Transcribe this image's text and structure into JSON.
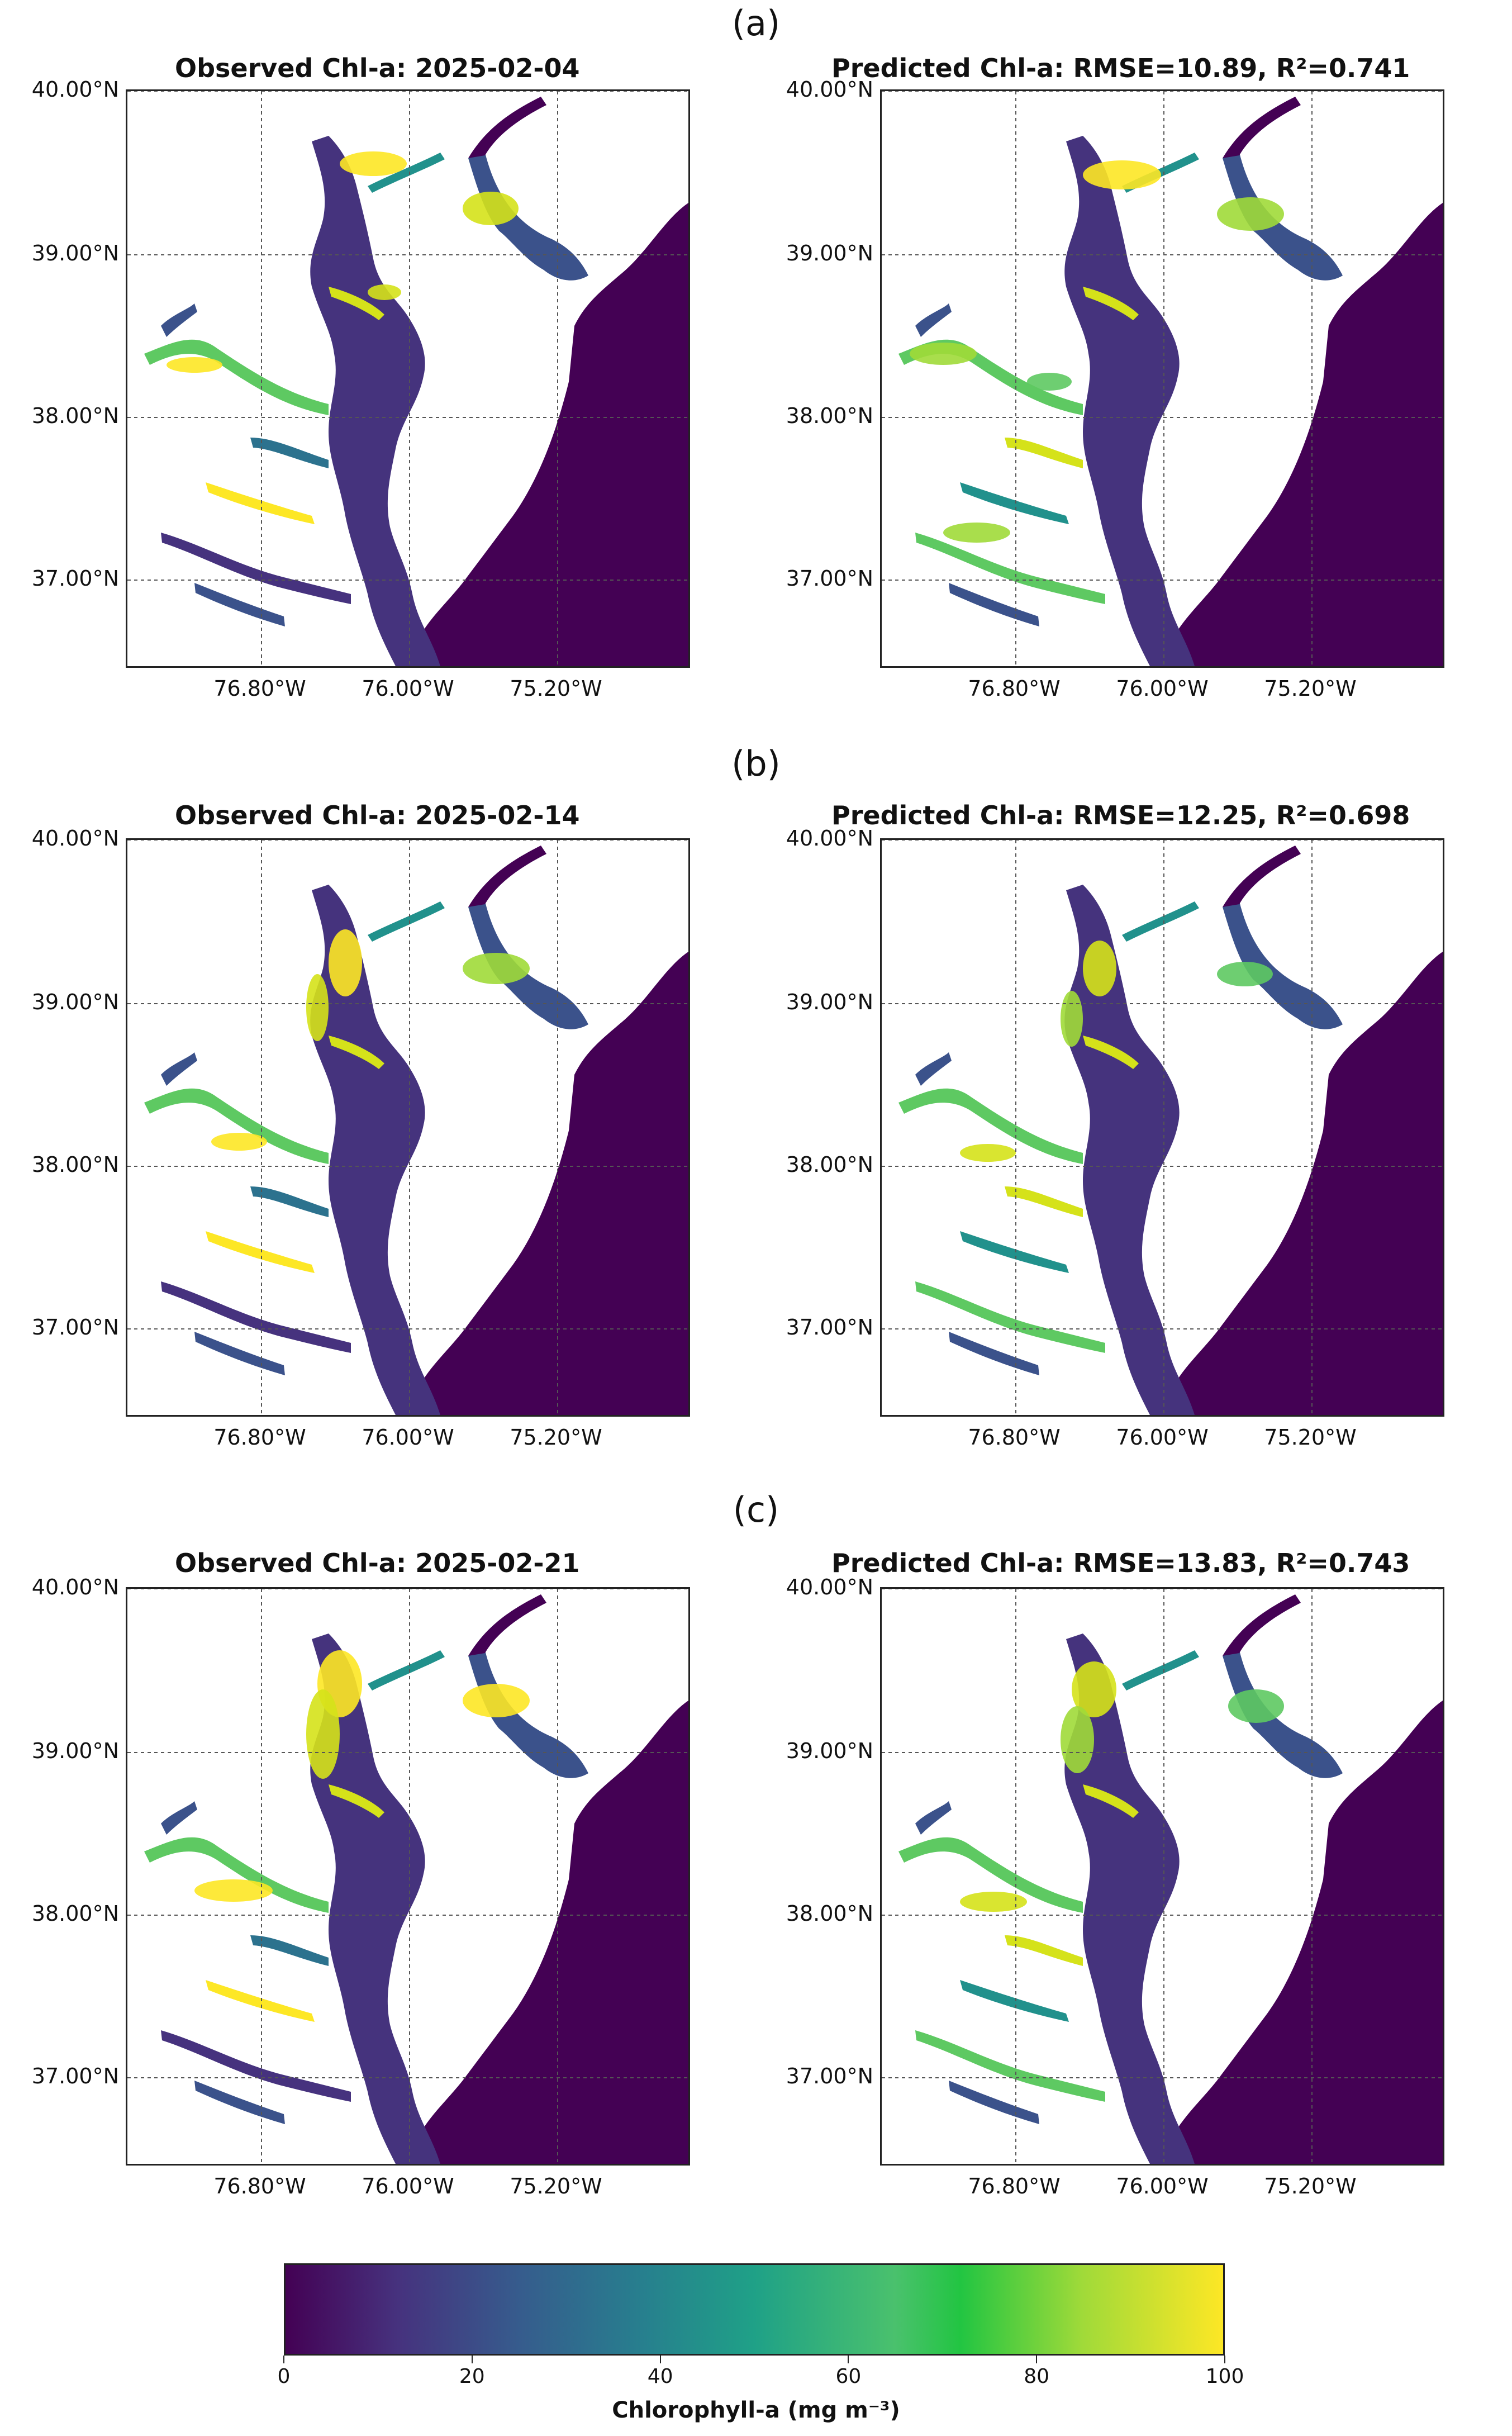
{
  "panels": [
    {
      "label": "(a)",
      "observed_title": "Observed Chl-a: 2025-02-04",
      "predicted_title": "Predicted Chl-a: RMSE=10.89, R²=0.741"
    },
    {
      "label": "(b)",
      "observed_title": "Observed Chl-a: 2025-02-14",
      "predicted_title": "Predicted Chl-a: RMSE=12.25, R²=0.698"
    },
    {
      "label": "(c)",
      "observed_title": "Observed Chl-a: 2025-02-21",
      "predicted_title": "Predicted Chl-a: RMSE=13.83, R²=0.743"
    }
  ],
  "lat_ticks": [
    "40.00°N",
    "39.00°N",
    "38.00°N",
    "37.00°N"
  ],
  "lon_ticks": [
    "76.80°W",
    "76.00°W",
    "75.20°W"
  ],
  "colorbar": {
    "title": "Chlorophyll-a (mg m⁻³)",
    "ticks": [
      "0",
      "20",
      "40",
      "60",
      "80",
      "100"
    ],
    "range": [
      0,
      100
    ],
    "colormap": "viridis"
  },
  "colors": {
    "water_low": "#440154",
    "mid": "#21918c",
    "high": "#fde725",
    "land": "#ffffff"
  }
}
